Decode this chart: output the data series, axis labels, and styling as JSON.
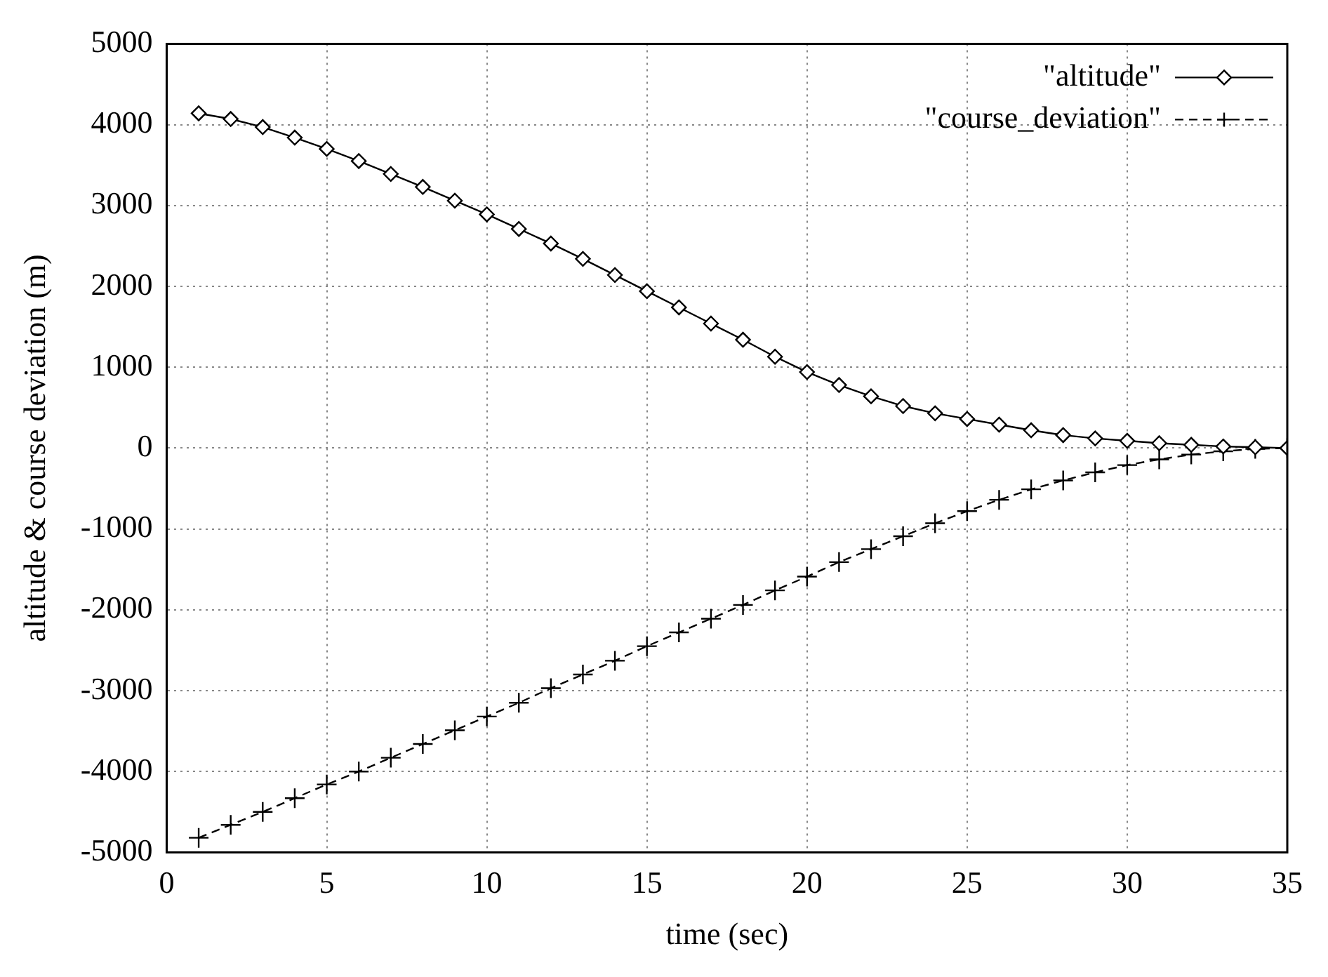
{
  "chart_data": {
    "type": "line",
    "xlabel": "time (sec)",
    "ylabel": "altitude & course deviation (m)",
    "x": [
      1,
      2,
      3,
      4,
      5,
      6,
      7,
      8,
      9,
      10,
      11,
      12,
      13,
      14,
      15,
      16,
      17,
      18,
      19,
      20,
      21,
      22,
      23,
      24,
      25,
      26,
      27,
      28,
      29,
      30,
      31,
      32,
      33,
      34,
      35
    ],
    "series": [
      {
        "name": "\"altitude\"",
        "color": "#000000",
        "marker": "diamond",
        "line_style": "solid",
        "values": [
          4140,
          4070,
          3970,
          3840,
          3700,
          3550,
          3390,
          3230,
          3060,
          2890,
          2710,
          2530,
          2340,
          2140,
          1940,
          1740,
          1540,
          1340,
          1130,
          940,
          780,
          640,
          520,
          430,
          360,
          290,
          220,
          160,
          120,
          90,
          60,
          40,
          20,
          10,
          0
        ]
      },
      {
        "name": "\"course_deviation\"",
        "color": "#000000",
        "marker": "cross",
        "line_style": "dashed",
        "values": [
          -4820,
          -4660,
          -4500,
          -4330,
          -4160,
          -4000,
          -3830,
          -3660,
          -3490,
          -3320,
          -3150,
          -2970,
          -2800,
          -2630,
          -2450,
          -2280,
          -2110,
          -1940,
          -1760,
          -1590,
          -1410,
          -1250,
          -1090,
          -930,
          -780,
          -640,
          -510,
          -400,
          -300,
          -210,
          -140,
          -80,
          -40,
          -10,
          0
        ]
      }
    ],
    "xlim": [
      0,
      35
    ],
    "xticks": [
      0,
      5,
      10,
      15,
      20,
      25,
      30,
      35
    ],
    "ylim": [
      -5000,
      5000
    ],
    "yticks": [
      -5000,
      -4000,
      -3000,
      -2000,
      -1000,
      0,
      1000,
      2000,
      3000,
      4000,
      5000
    ],
    "grid": true,
    "legend": "top right"
  }
}
